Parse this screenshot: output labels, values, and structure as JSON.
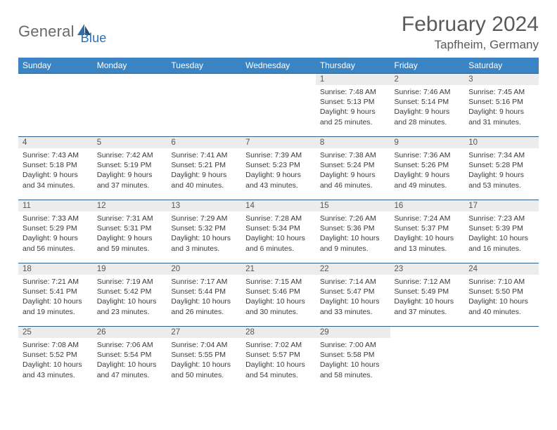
{
  "brand": {
    "name_a": "General",
    "name_b": "Blue"
  },
  "title": "February 2024",
  "location": "Tapfheim, Germany",
  "colors": {
    "header_bg": "#3b84c4",
    "row_border": "#2e5e88",
    "daynum_bg": "#ececec",
    "text": "#3a3a3a",
    "logo_gray": "#6a6a6a",
    "logo_blue": "#2f6fae"
  },
  "day_labels": [
    "Sunday",
    "Monday",
    "Tuesday",
    "Wednesday",
    "Thursday",
    "Friday",
    "Saturday"
  ],
  "weeks": [
    [
      {
        "n": "",
        "sr": "",
        "ss": "",
        "d1": "",
        "d2": ""
      },
      {
        "n": "",
        "sr": "",
        "ss": "",
        "d1": "",
        "d2": ""
      },
      {
        "n": "",
        "sr": "",
        "ss": "",
        "d1": "",
        "d2": ""
      },
      {
        "n": "",
        "sr": "",
        "ss": "",
        "d1": "",
        "d2": ""
      },
      {
        "n": "1",
        "sr": "Sunrise: 7:48 AM",
        "ss": "Sunset: 5:13 PM",
        "d1": "Daylight: 9 hours",
        "d2": "and 25 minutes."
      },
      {
        "n": "2",
        "sr": "Sunrise: 7:46 AM",
        "ss": "Sunset: 5:14 PM",
        "d1": "Daylight: 9 hours",
        "d2": "and 28 minutes."
      },
      {
        "n": "3",
        "sr": "Sunrise: 7:45 AM",
        "ss": "Sunset: 5:16 PM",
        "d1": "Daylight: 9 hours",
        "d2": "and 31 minutes."
      }
    ],
    [
      {
        "n": "4",
        "sr": "Sunrise: 7:43 AM",
        "ss": "Sunset: 5:18 PM",
        "d1": "Daylight: 9 hours",
        "d2": "and 34 minutes."
      },
      {
        "n": "5",
        "sr": "Sunrise: 7:42 AM",
        "ss": "Sunset: 5:19 PM",
        "d1": "Daylight: 9 hours",
        "d2": "and 37 minutes."
      },
      {
        "n": "6",
        "sr": "Sunrise: 7:41 AM",
        "ss": "Sunset: 5:21 PM",
        "d1": "Daylight: 9 hours",
        "d2": "and 40 minutes."
      },
      {
        "n": "7",
        "sr": "Sunrise: 7:39 AM",
        "ss": "Sunset: 5:23 PM",
        "d1": "Daylight: 9 hours",
        "d2": "and 43 minutes."
      },
      {
        "n": "8",
        "sr": "Sunrise: 7:38 AM",
        "ss": "Sunset: 5:24 PM",
        "d1": "Daylight: 9 hours",
        "d2": "and 46 minutes."
      },
      {
        "n": "9",
        "sr": "Sunrise: 7:36 AM",
        "ss": "Sunset: 5:26 PM",
        "d1": "Daylight: 9 hours",
        "d2": "and 49 minutes."
      },
      {
        "n": "10",
        "sr": "Sunrise: 7:34 AM",
        "ss": "Sunset: 5:28 PM",
        "d1": "Daylight: 9 hours",
        "d2": "and 53 minutes."
      }
    ],
    [
      {
        "n": "11",
        "sr": "Sunrise: 7:33 AM",
        "ss": "Sunset: 5:29 PM",
        "d1": "Daylight: 9 hours",
        "d2": "and 56 minutes."
      },
      {
        "n": "12",
        "sr": "Sunrise: 7:31 AM",
        "ss": "Sunset: 5:31 PM",
        "d1": "Daylight: 9 hours",
        "d2": "and 59 minutes."
      },
      {
        "n": "13",
        "sr": "Sunrise: 7:29 AM",
        "ss": "Sunset: 5:32 PM",
        "d1": "Daylight: 10 hours",
        "d2": "and 3 minutes."
      },
      {
        "n": "14",
        "sr": "Sunrise: 7:28 AM",
        "ss": "Sunset: 5:34 PM",
        "d1": "Daylight: 10 hours",
        "d2": "and 6 minutes."
      },
      {
        "n": "15",
        "sr": "Sunrise: 7:26 AM",
        "ss": "Sunset: 5:36 PM",
        "d1": "Daylight: 10 hours",
        "d2": "and 9 minutes."
      },
      {
        "n": "16",
        "sr": "Sunrise: 7:24 AM",
        "ss": "Sunset: 5:37 PM",
        "d1": "Daylight: 10 hours",
        "d2": "and 13 minutes."
      },
      {
        "n": "17",
        "sr": "Sunrise: 7:23 AM",
        "ss": "Sunset: 5:39 PM",
        "d1": "Daylight: 10 hours",
        "d2": "and 16 minutes."
      }
    ],
    [
      {
        "n": "18",
        "sr": "Sunrise: 7:21 AM",
        "ss": "Sunset: 5:41 PM",
        "d1": "Daylight: 10 hours",
        "d2": "and 19 minutes."
      },
      {
        "n": "19",
        "sr": "Sunrise: 7:19 AM",
        "ss": "Sunset: 5:42 PM",
        "d1": "Daylight: 10 hours",
        "d2": "and 23 minutes."
      },
      {
        "n": "20",
        "sr": "Sunrise: 7:17 AM",
        "ss": "Sunset: 5:44 PM",
        "d1": "Daylight: 10 hours",
        "d2": "and 26 minutes."
      },
      {
        "n": "21",
        "sr": "Sunrise: 7:15 AM",
        "ss": "Sunset: 5:46 PM",
        "d1": "Daylight: 10 hours",
        "d2": "and 30 minutes."
      },
      {
        "n": "22",
        "sr": "Sunrise: 7:14 AM",
        "ss": "Sunset: 5:47 PM",
        "d1": "Daylight: 10 hours",
        "d2": "and 33 minutes."
      },
      {
        "n": "23",
        "sr": "Sunrise: 7:12 AM",
        "ss": "Sunset: 5:49 PM",
        "d1": "Daylight: 10 hours",
        "d2": "and 37 minutes."
      },
      {
        "n": "24",
        "sr": "Sunrise: 7:10 AM",
        "ss": "Sunset: 5:50 PM",
        "d1": "Daylight: 10 hours",
        "d2": "and 40 minutes."
      }
    ],
    [
      {
        "n": "25",
        "sr": "Sunrise: 7:08 AM",
        "ss": "Sunset: 5:52 PM",
        "d1": "Daylight: 10 hours",
        "d2": "and 43 minutes."
      },
      {
        "n": "26",
        "sr": "Sunrise: 7:06 AM",
        "ss": "Sunset: 5:54 PM",
        "d1": "Daylight: 10 hours",
        "d2": "and 47 minutes."
      },
      {
        "n": "27",
        "sr": "Sunrise: 7:04 AM",
        "ss": "Sunset: 5:55 PM",
        "d1": "Daylight: 10 hours",
        "d2": "and 50 minutes."
      },
      {
        "n": "28",
        "sr": "Sunrise: 7:02 AM",
        "ss": "Sunset: 5:57 PM",
        "d1": "Daylight: 10 hours",
        "d2": "and 54 minutes."
      },
      {
        "n": "29",
        "sr": "Sunrise: 7:00 AM",
        "ss": "Sunset: 5:58 PM",
        "d1": "Daylight: 10 hours",
        "d2": "and 58 minutes."
      },
      {
        "n": "",
        "sr": "",
        "ss": "",
        "d1": "",
        "d2": ""
      },
      {
        "n": "",
        "sr": "",
        "ss": "",
        "d1": "",
        "d2": ""
      }
    ]
  ]
}
